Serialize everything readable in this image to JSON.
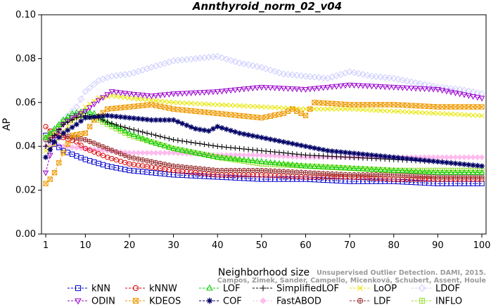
{
  "chart_data": {
    "type": "line",
    "title": "Annthyroid_norm_02_v04",
    "xlabel": "Neighborhood size",
    "ylabel": "AP",
    "xlim": [
      1,
      100
    ],
    "ylim": [
      0.0,
      0.1
    ],
    "xticks": [
      1,
      10,
      20,
      30,
      40,
      50,
      60,
      70,
      80,
      90,
      100
    ],
    "yticks": [
      "0.00",
      "0.02",
      "0.04",
      "0.06",
      "0.08",
      "0.10"
    ],
    "grid": false,
    "legend_position": "bottom",
    "series": [
      {
        "name": "kNN",
        "color": "#0000cc",
        "marker": "square",
        "knots": [
          [
            1,
            0.045
          ],
          [
            2,
            0.043
          ],
          [
            3,
            0.041
          ],
          [
            5,
            0.038
          ],
          [
            10,
            0.034
          ],
          [
            15,
            0.031
          ],
          [
            20,
            0.029
          ],
          [
            30,
            0.027
          ],
          [
            40,
            0.026
          ],
          [
            50,
            0.025
          ],
          [
            60,
            0.025
          ],
          [
            70,
            0.024
          ],
          [
            80,
            0.024
          ],
          [
            90,
            0.023
          ],
          [
            100,
            0.023
          ]
        ]
      },
      {
        "name": "kNNW",
        "color": "#dd0000",
        "marker": "circle",
        "knots": [
          [
            1,
            0.049
          ],
          [
            2,
            0.047
          ],
          [
            3,
            0.046
          ],
          [
            5,
            0.044
          ],
          [
            8,
            0.042
          ],
          [
            10,
            0.039
          ],
          [
            15,
            0.035
          ],
          [
            20,
            0.032
          ],
          [
            30,
            0.029
          ],
          [
            40,
            0.027
          ],
          [
            50,
            0.027
          ],
          [
            60,
            0.026
          ],
          [
            70,
            0.026
          ],
          [
            80,
            0.025
          ],
          [
            90,
            0.025
          ],
          [
            100,
            0.025
          ]
        ]
      },
      {
        "name": "LOF",
        "color": "#00cc00",
        "marker": "triangle-up",
        "knots": [
          [
            1,
            0.044
          ],
          [
            3,
            0.048
          ],
          [
            5,
            0.052
          ],
          [
            7,
            0.055
          ],
          [
            10,
            0.056
          ],
          [
            12,
            0.055
          ],
          [
            15,
            0.051
          ],
          [
            20,
            0.046
          ],
          [
            25,
            0.042
          ],
          [
            30,
            0.039
          ],
          [
            40,
            0.035
          ],
          [
            50,
            0.033
          ],
          [
            60,
            0.031
          ],
          [
            70,
            0.03
          ],
          [
            80,
            0.029
          ],
          [
            90,
            0.028
          ],
          [
            100,
            0.028
          ]
        ]
      },
      {
        "name": "SimplifiedLOF",
        "color": "#000000",
        "marker": "plus",
        "knots": [
          [
            1,
            0.04
          ],
          [
            3,
            0.045
          ],
          [
            5,
            0.05
          ],
          [
            8,
            0.053
          ],
          [
            10,
            0.054
          ],
          [
            13,
            0.053
          ],
          [
            15,
            0.051
          ],
          [
            20,
            0.048
          ],
          [
            30,
            0.043
          ],
          [
            40,
            0.04
          ],
          [
            50,
            0.038
          ],
          [
            60,
            0.036
          ],
          [
            70,
            0.035
          ],
          [
            80,
            0.034
          ],
          [
            90,
            0.033
          ],
          [
            100,
            0.031
          ]
        ]
      },
      {
        "name": "LoOP",
        "color": "#e6e600",
        "marker": "x",
        "knots": [
          [
            1,
            0.038
          ],
          [
            3,
            0.041
          ],
          [
            5,
            0.047
          ],
          [
            8,
            0.053
          ],
          [
            10,
            0.058
          ],
          [
            13,
            0.062
          ],
          [
            16,
            0.063
          ],
          [
            20,
            0.062
          ],
          [
            30,
            0.06
          ],
          [
            40,
            0.059
          ],
          [
            50,
            0.058
          ],
          [
            60,
            0.057
          ],
          [
            70,
            0.057
          ],
          [
            80,
            0.056
          ],
          [
            90,
            0.055
          ],
          [
            100,
            0.054
          ]
        ]
      },
      {
        "name": "LDOF",
        "color": "#ccccff",
        "marker": "diamond",
        "knots": [
          [
            1,
            0.043
          ],
          [
            3,
            0.047
          ],
          [
            5,
            0.052
          ],
          [
            8,
            0.058
          ],
          [
            10,
            0.065
          ],
          [
            13,
            0.07
          ],
          [
            16,
            0.072
          ],
          [
            20,
            0.073
          ],
          [
            25,
            0.076
          ],
          [
            30,
            0.079
          ],
          [
            35,
            0.08
          ],
          [
            40,
            0.081
          ],
          [
            45,
            0.078
          ],
          [
            50,
            0.076
          ],
          [
            55,
            0.073
          ],
          [
            60,
            0.072
          ],
          [
            65,
            0.071
          ],
          [
            70,
            0.074
          ],
          [
            75,
            0.072
          ],
          [
            80,
            0.071
          ],
          [
            85,
            0.069
          ],
          [
            90,
            0.067
          ],
          [
            95,
            0.066
          ],
          [
            100,
            0.064
          ]
        ]
      },
      {
        "name": "ODIN",
        "color": "#9900cc",
        "marker": "triangle-down",
        "knots": [
          [
            1,
            0.028
          ],
          [
            2,
            0.036
          ],
          [
            3,
            0.044
          ],
          [
            5,
            0.05
          ],
          [
            7,
            0.053
          ],
          [
            10,
            0.056
          ],
          [
            13,
            0.061
          ],
          [
            16,
            0.065
          ],
          [
            20,
            0.064
          ],
          [
            25,
            0.063
          ],
          [
            30,
            0.064
          ],
          [
            40,
            0.065
          ],
          [
            50,
            0.067
          ],
          [
            60,
            0.066
          ],
          [
            70,
            0.068
          ],
          [
            80,
            0.067
          ],
          [
            90,
            0.066
          ],
          [
            100,
            0.062
          ]
        ]
      },
      {
        "name": "KDEOS",
        "color": "#ee9900",
        "marker": "square-x",
        "knots": [
          [
            1,
            0.023
          ],
          [
            2,
            0.025
          ],
          [
            3,
            0.028
          ],
          [
            5,
            0.037
          ],
          [
            7,
            0.045
          ],
          [
            10,
            0.046
          ],
          [
            12,
            0.052
          ],
          [
            15,
            0.057
          ],
          [
            20,
            0.058
          ],
          [
            25,
            0.059
          ],
          [
            30,
            0.057
          ],
          [
            35,
            0.056
          ],
          [
            40,
            0.055
          ],
          [
            45,
            0.054
          ],
          [
            50,
            0.053
          ],
          [
            55,
            0.055
          ],
          [
            57,
            0.057
          ],
          [
            60,
            0.054
          ],
          [
            62,
            0.06
          ],
          [
            70,
            0.059
          ],
          [
            80,
            0.059
          ],
          [
            90,
            0.058
          ],
          [
            100,
            0.058
          ]
        ]
      },
      {
        "name": "COF",
        "color": "#000066",
        "marker": "asterisk",
        "knots": [
          [
            1,
            0.035
          ],
          [
            3,
            0.042
          ],
          [
            5,
            0.046
          ],
          [
            8,
            0.05
          ],
          [
            10,
            0.053
          ],
          [
            15,
            0.054
          ],
          [
            20,
            0.053
          ],
          [
            25,
            0.052
          ],
          [
            30,
            0.052
          ],
          [
            35,
            0.048
          ],
          [
            38,
            0.047
          ],
          [
            40,
            0.049
          ],
          [
            45,
            0.046
          ],
          [
            50,
            0.044
          ],
          [
            55,
            0.042
          ],
          [
            60,
            0.04
          ],
          [
            65,
            0.038
          ],
          [
            70,
            0.037
          ],
          [
            80,
            0.035
          ],
          [
            90,
            0.033
          ],
          [
            100,
            0.031
          ]
        ]
      },
      {
        "name": "FastABOD",
        "color": "#ffbbee",
        "marker": "diamond-filled",
        "knots": [
          [
            1,
            0.04
          ],
          [
            3,
            0.041
          ],
          [
            5,
            0.04
          ],
          [
            10,
            0.039
          ],
          [
            20,
            0.037
          ],
          [
            30,
            0.037
          ],
          [
            40,
            0.036
          ],
          [
            50,
            0.036
          ],
          [
            60,
            0.035
          ],
          [
            70,
            0.035
          ],
          [
            80,
            0.035
          ],
          [
            90,
            0.035
          ],
          [
            100,
            0.035
          ]
        ]
      },
      {
        "name": "LDF",
        "color": "#993333",
        "marker": "circle-plus",
        "knots": [
          [
            1,
            0.043
          ],
          [
            3,
            0.045
          ],
          [
            5,
            0.045
          ],
          [
            10,
            0.043
          ],
          [
            15,
            0.039
          ],
          [
            20,
            0.035
          ],
          [
            30,
            0.031
          ],
          [
            40,
            0.029
          ],
          [
            50,
            0.029
          ],
          [
            60,
            0.028
          ],
          [
            70,
            0.027
          ],
          [
            80,
            0.027
          ],
          [
            90,
            0.026
          ],
          [
            100,
            0.026
          ]
        ]
      },
      {
        "name": "INFLO",
        "color": "#99dd33",
        "marker": "square-cross",
        "knots": [
          [
            1,
            0.044
          ],
          [
            3,
            0.047
          ],
          [
            5,
            0.051
          ],
          [
            8,
            0.054
          ],
          [
            10,
            0.054
          ],
          [
            13,
            0.052
          ],
          [
            15,
            0.05
          ],
          [
            20,
            0.045
          ],
          [
            30,
            0.039
          ],
          [
            40,
            0.035
          ],
          [
            50,
            0.032
          ],
          [
            60,
            0.031
          ],
          [
            70,
            0.03
          ],
          [
            80,
            0.029
          ],
          [
            90,
            0.029
          ],
          [
            100,
            0.029
          ]
        ]
      }
    ]
  },
  "watermark": {
    "line1": "Unsupervised Outlier Detection. DAMI, 2015.",
    "line2": "Campos, Zimek, Sander, Campello, Micenková, Schubert, Assent, Houle"
  }
}
